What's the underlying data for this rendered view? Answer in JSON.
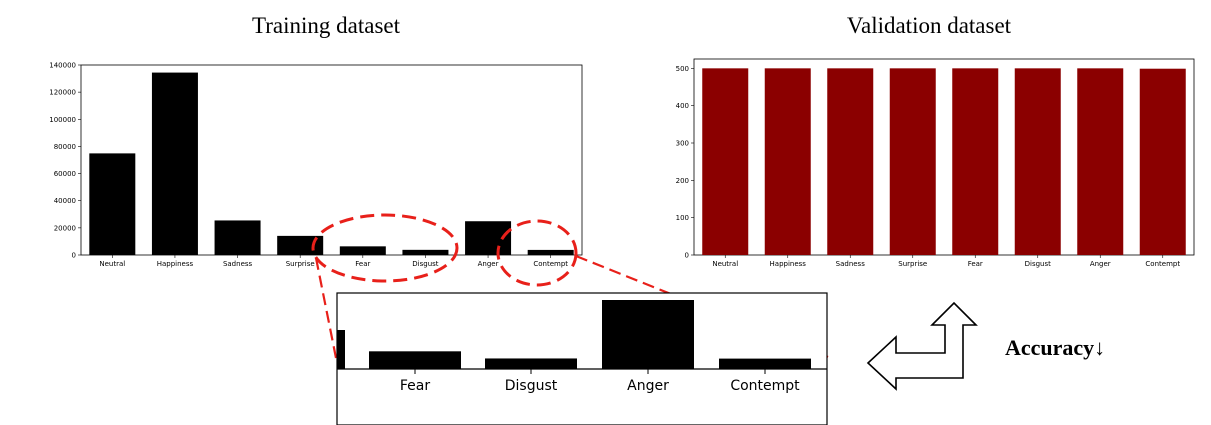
{
  "chart_data": [
    {
      "type": "bar",
      "title": "Training dataset",
      "categories": [
        "Neutral",
        "Happiness",
        "Sadness",
        "Surprise",
        "Fear",
        "Disgust",
        "Anger",
        "Contempt"
      ],
      "values": [
        74874,
        134415,
        25459,
        14090,
        6378,
        3803,
        24882,
        3750
      ],
      "yticks": [
        "0",
        "20000",
        "40000",
        "60000",
        "80000",
        "100000",
        "120000",
        "140000"
      ],
      "ylim": [
        0,
        140000
      ],
      "color": "#000000",
      "highlighted": [
        "Fear",
        "Disgust",
        "Contempt"
      ]
    },
    {
      "type": "bar",
      "title": "Validation dataset",
      "categories": [
        "Neutral",
        "Happiness",
        "Sadness",
        "Surprise",
        "Fear",
        "Disgust",
        "Anger",
        "Contempt"
      ],
      "values": [
        500,
        500,
        500,
        500,
        500,
        500,
        500,
        499
      ],
      "yticks": [
        "0",
        "100",
        "200",
        "300",
        "400",
        "500"
      ],
      "ylim": [
        0,
        525
      ],
      "color": "#8b0000"
    },
    {
      "type": "bar",
      "role": "zoom-inset",
      "categories": [
        "Fear",
        "Disgust",
        "Anger",
        "Contempt"
      ],
      "values": [
        6378,
        3803,
        24882,
        3750
      ],
      "color": "#000000"
    }
  ],
  "annotation": {
    "text": "Accuracy↓"
  },
  "icons": {
    "arrow": "u-turn-arrow-icon"
  }
}
